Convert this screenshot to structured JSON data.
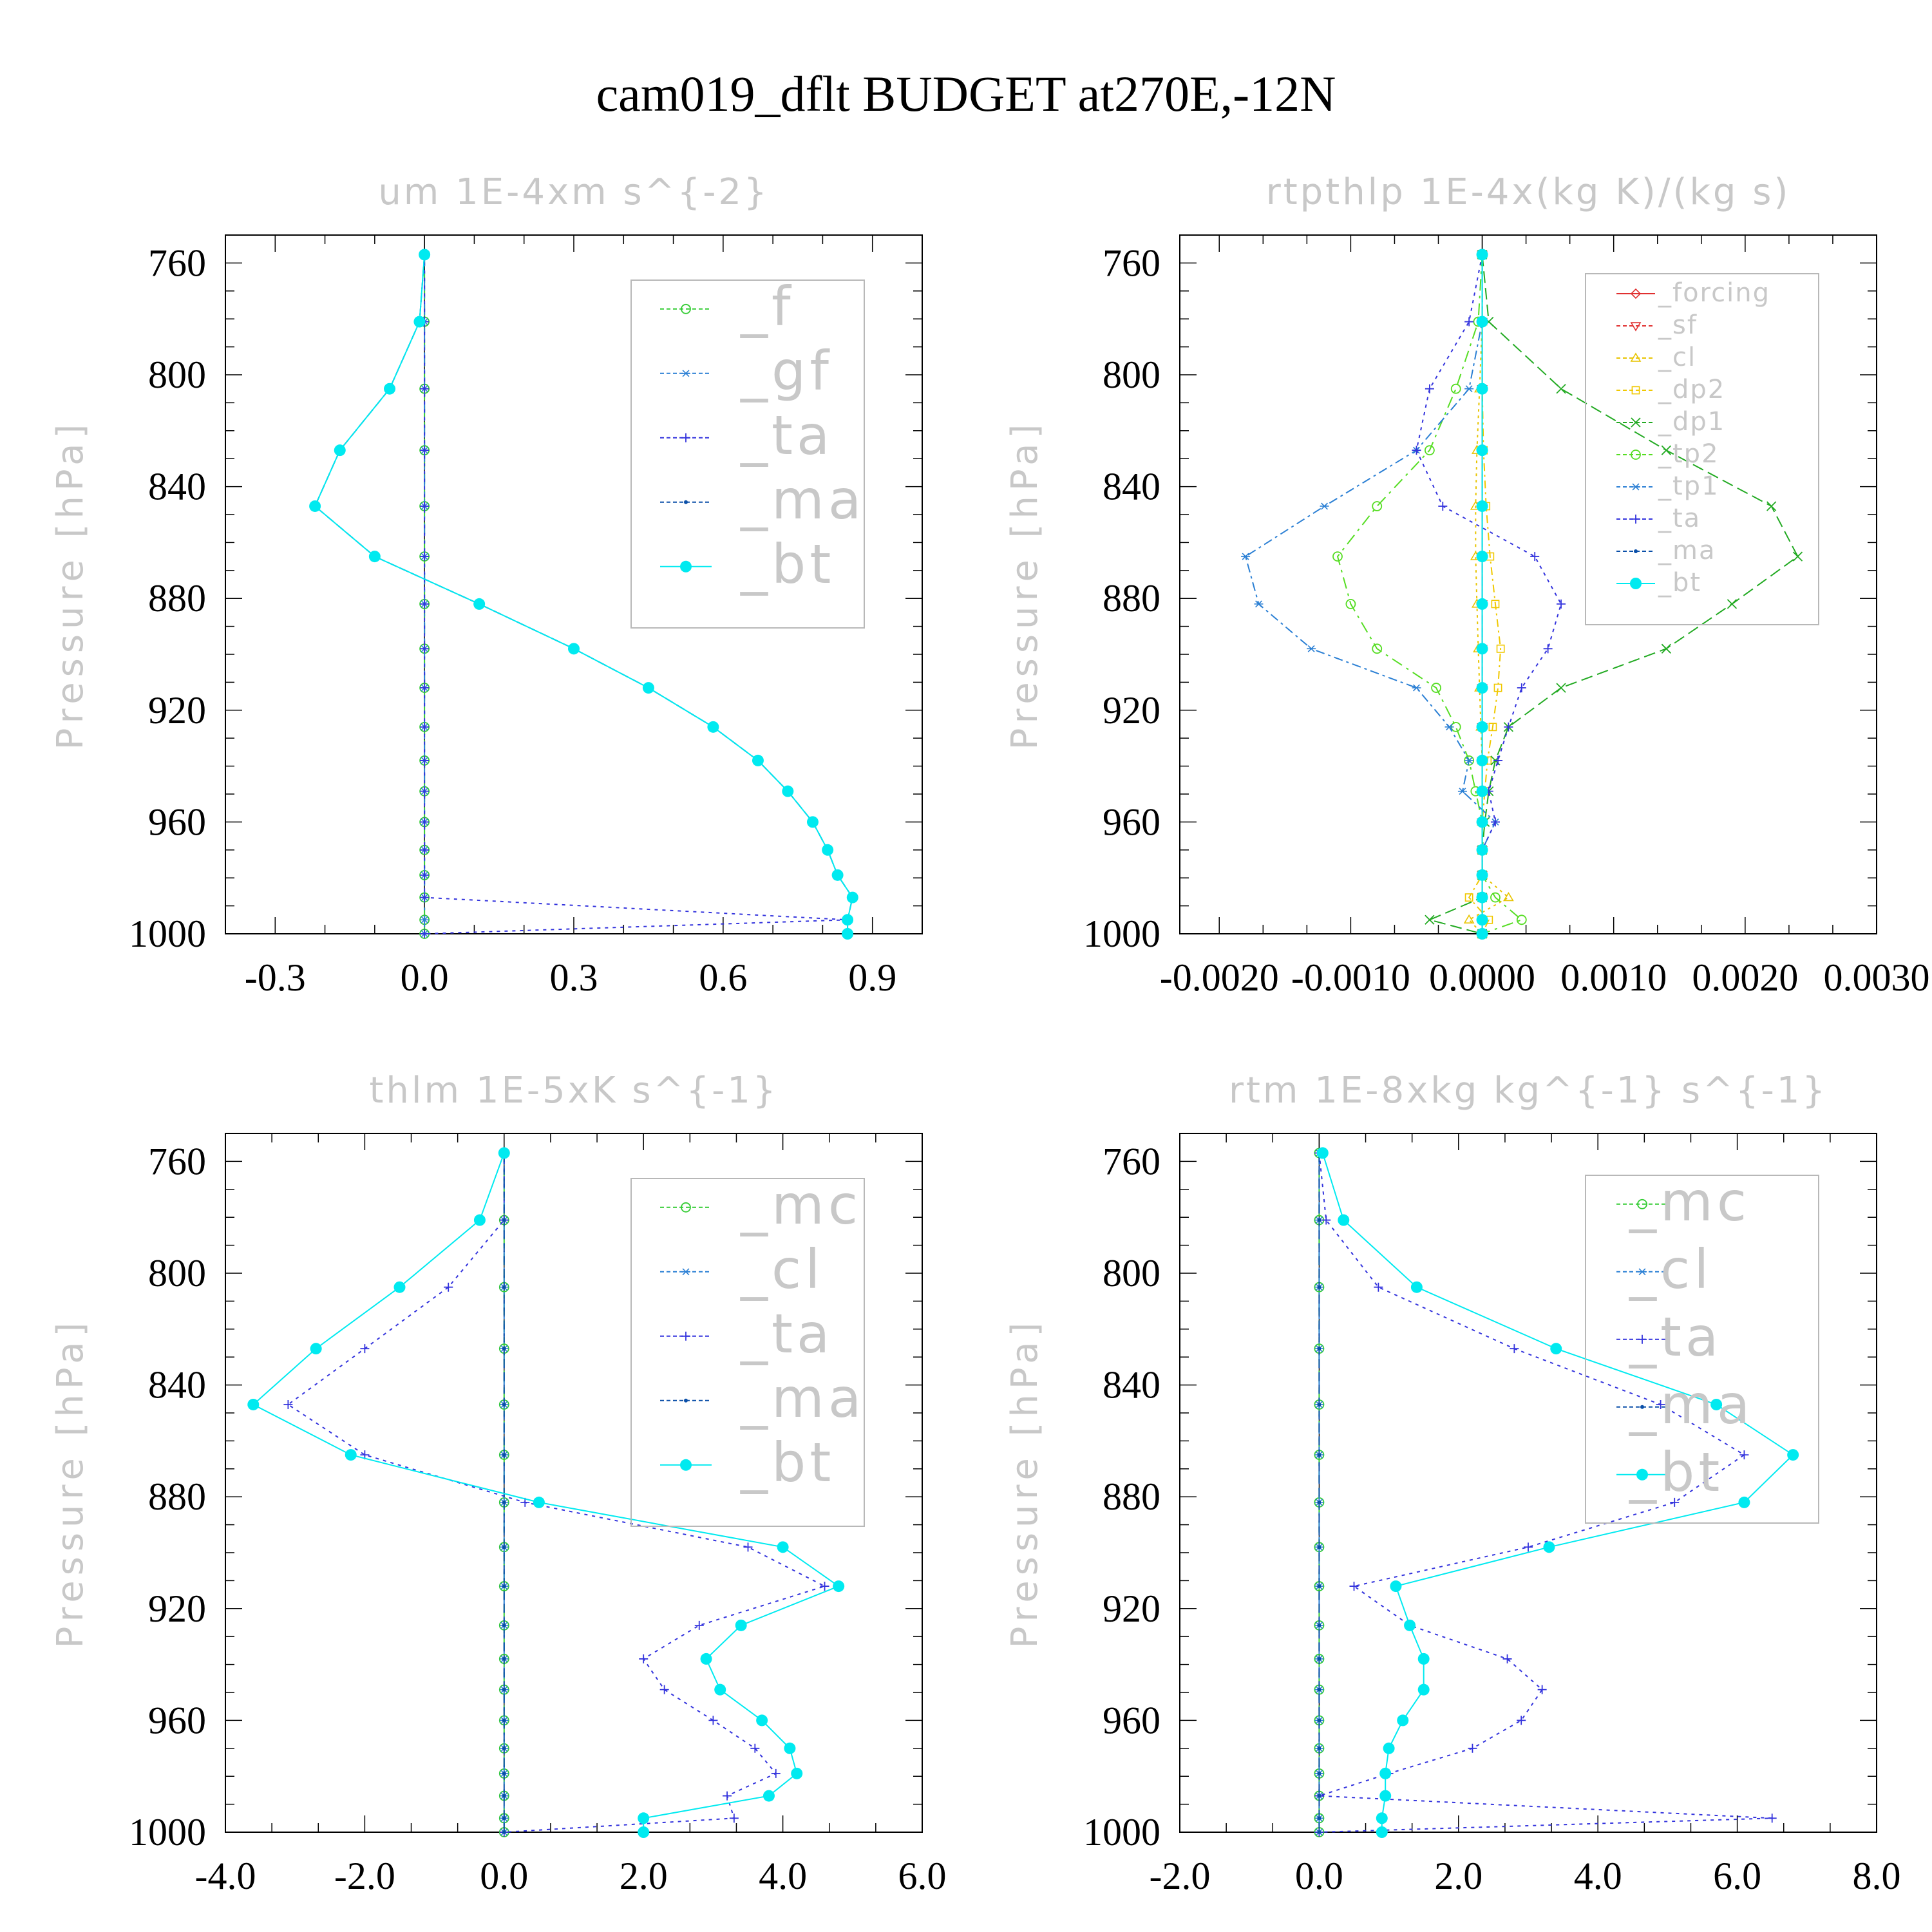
{
  "page_title": "cam019_dflt  BUDGET at270E,-12N",
  "colors": {
    "f": "#33cc33",
    "gf": "#2a7fd4",
    "ta": "#3333dd",
    "ma": "#0a4fa8",
    "bt": "#00eaf0",
    "forcing": "#e03030",
    "sf": "#e03030",
    "cl_y": "#e8c400",
    "dp2": "#f0c800",
    "dp1": "#22aa22",
    "tp2": "#55dd22",
    "tp1": "#2a7fd4",
    "mc": "#33cc33",
    "cl_b": "#2a7fd4"
  },
  "chart_data": [
    {
      "type": "line",
      "title": "um   1E-4xm s^{-2}",
      "ylabel": "Pressure [hPa]",
      "ylim": [
        1000,
        750
      ],
      "xlim": [
        -0.4,
        1.0
      ],
      "yticks": [
        "760",
        "800",
        "840",
        "880",
        "920",
        "960",
        "1000"
      ],
      "xticks": [
        "-0.3",
        "0.0",
        "0.3",
        "0.6",
        "0.9"
      ],
      "legend": [
        "_f",
        "_gf",
        "_ta",
        "_ma",
        "_bt"
      ],
      "pressure": [
        757,
        781,
        805,
        827,
        847,
        865,
        882,
        898,
        912,
        926,
        938,
        949,
        960,
        970,
        979,
        987,
        995,
        1000
      ],
      "series": [
        {
          "name": "_f",
          "x": [
            0,
            0,
            0,
            0,
            0,
            0,
            0,
            0,
            0,
            0,
            0,
            0,
            0,
            0,
            0,
            0,
            0,
            0
          ]
        },
        {
          "name": "_gf",
          "x": [
            0,
            0,
            0,
            0,
            0,
            0,
            0,
            0,
            0,
            0,
            0,
            0,
            0,
            0,
            0,
            0,
            0,
            0
          ]
        },
        {
          "name": "_ta",
          "x": [
            0,
            0,
            0,
            0,
            0,
            0,
            0,
            0,
            0,
            0,
            0,
            0,
            0,
            0,
            0,
            0,
            0.85,
            0
          ]
        },
        {
          "name": "_ma",
          "x": [
            0.0,
            -0.01,
            -0.07,
            -0.17,
            -0.22,
            -0.1,
            0.11,
            0.3,
            0.45,
            0.58,
            0.67,
            0.73,
            0.78,
            0.81,
            0.83,
            0.86,
            0.85,
            0.85
          ]
        },
        {
          "name": "_bt",
          "x": [
            0.0,
            -0.01,
            -0.07,
            -0.17,
            -0.22,
            -0.1,
            0.11,
            0.3,
            0.45,
            0.58,
            0.67,
            0.73,
            0.78,
            0.81,
            0.83,
            0.86,
            0.85,
            0.85
          ]
        }
      ]
    },
    {
      "type": "line",
      "title": "rtpthlp   1E-4x(kg K)/(kg s)",
      "ylabel": "Pressure [hPa]",
      "ylim": [
        1000,
        750
      ],
      "xlim": [
        -0.0023,
        0.003
      ],
      "yticks": [
        "760",
        "800",
        "840",
        "880",
        "920",
        "960",
        "1000"
      ],
      "xticks": [
        "-0.0020",
        "-0.0010",
        "0.0000",
        "0.0010",
        "0.0020",
        "0.0030"
      ],
      "legend": [
        "_forcing",
        "_sf",
        "_cl",
        "_dp2",
        "_dp1",
        "_tp2",
        "_tp1",
        "_ta",
        "_ma",
        "_bt"
      ],
      "pressure": [
        757,
        781,
        805,
        827,
        847,
        865,
        882,
        898,
        912,
        926,
        938,
        949,
        960,
        970,
        979,
        987,
        995,
        1000
      ],
      "series": [
        {
          "name": "_forcing",
          "x": [
            0,
            0,
            0,
            0,
            0,
            0,
            0,
            0,
            0,
            0,
            0,
            0,
            0,
            0,
            0,
            0,
            0,
            0
          ]
        },
        {
          "name": "_sf",
          "x": [
            0,
            0,
            0,
            0,
            0,
            0,
            0,
            0,
            0,
            0,
            0,
            0,
            0,
            0,
            0,
            0,
            0,
            0
          ]
        },
        {
          "name": "_cl",
          "x": [
            0,
            0,
            -2e-05,
            -4e-05,
            -5e-05,
            -5e-05,
            -4e-05,
            -3e-05,
            -2e-05,
            -1e-05,
            0,
            0,
            0,
            0,
            0,
            0.0002,
            -0.0001,
            0
          ]
        },
        {
          "name": "_dp2",
          "x": [
            0,
            0,
            0,
            1e-05,
            3e-05,
            6e-05,
            0.0001,
            0.00014,
            0.00012,
            8e-05,
            4e-05,
            2e-05,
            0,
            0,
            0,
            -0.0001,
            5e-05,
            0
          ]
        },
        {
          "name": "_dp1",
          "x": [
            0,
            5e-05,
            0.0006,
            0.0014,
            0.0022,
            0.0024,
            0.0019,
            0.0014,
            0.0006,
            0.0002,
            0.0001,
            5e-05,
            2e-05,
            0,
            0,
            0,
            -0.0004,
            0
          ]
        },
        {
          "name": "_tp2",
          "x": [
            0,
            -3e-05,
            -0.0002,
            -0.0004,
            -0.0008,
            -0.0011,
            -0.001,
            -0.0008,
            -0.00035,
            -0.0002,
            -0.0001,
            -5e-05,
            0,
            0,
            0,
            0.0001,
            0.0003,
            0
          ]
        },
        {
          "name": "_tp1",
          "x": [
            0,
            0,
            -0.0001,
            -0.0005,
            -0.0012,
            -0.0018,
            -0.0017,
            -0.0013,
            -0.0005,
            -0.00025,
            -0.0001,
            -0.00015,
            0.0001,
            0,
            0,
            0,
            0,
            0
          ]
        },
        {
          "name": "_ta",
          "x": [
            0,
            -0.0001,
            -0.0004,
            -0.0005,
            -0.0003,
            0.0004,
            0.0006,
            0.0005,
            0.0003,
            0.0002,
            0.00012,
            5e-05,
            0.0001,
            0,
            0,
            0,
            0,
            0
          ]
        },
        {
          "name": "_ma",
          "x": [
            0,
            0,
            0,
            0,
            0,
            0,
            0,
            0,
            0,
            0,
            0,
            0,
            0,
            0,
            0,
            0,
            0,
            0
          ]
        },
        {
          "name": "_bt",
          "x": [
            0,
            0,
            0,
            0,
            0,
            0,
            0,
            0,
            0,
            0,
            0,
            0,
            0,
            0,
            0,
            0,
            0,
            0
          ]
        }
      ]
    },
    {
      "type": "line",
      "title": "thlm   1E-5xK s^{-1}",
      "ylabel": "Pressure [hPa]",
      "ylim": [
        1000,
        750
      ],
      "xlim": [
        -4.0,
        6.0
      ],
      "yticks": [
        "760",
        "800",
        "840",
        "880",
        "920",
        "960",
        "1000"
      ],
      "xticks": [
        "-4.0",
        "-2.0",
        "0.0",
        "2.0",
        "4.0",
        "6.0"
      ],
      "legend": [
        "_mc",
        "_cl",
        "_ta",
        "_ma",
        "_bt"
      ],
      "pressure": [
        757,
        781,
        805,
        827,
        847,
        865,
        882,
        898,
        912,
        926,
        938,
        949,
        960,
        970,
        979,
        987,
        995,
        1000
      ],
      "series": [
        {
          "name": "_mc",
          "x": [
            0,
            0,
            0,
            0,
            0,
            0,
            0,
            0,
            0,
            0,
            0,
            0,
            0,
            0,
            0,
            0,
            0,
            0
          ]
        },
        {
          "name": "_cl",
          "x": [
            0,
            0,
            0,
            0,
            0,
            0,
            0,
            0,
            0,
            0,
            0,
            0,
            0,
            0,
            0,
            0,
            0,
            0
          ]
        },
        {
          "name": "_ta",
          "x": [
            0,
            0,
            -0.8,
            -2.0,
            -3.1,
            -2.0,
            0.3,
            3.5,
            4.6,
            2.8,
            2.0,
            2.3,
            3.0,
            3.6,
            3.9,
            3.2,
            3.3,
            0
          ]
        },
        {
          "name": "_ma",
          "x": [
            0,
            0,
            0,
            0,
            0,
            0,
            0,
            0,
            0,
            0,
            0,
            0,
            0,
            0,
            0,
            0,
            0,
            0
          ]
        },
        {
          "name": "_bt",
          "x": [
            0,
            -0.35,
            -1.5,
            -2.7,
            -3.6,
            -2.2,
            0.5,
            4.0,
            4.8,
            3.4,
            2.9,
            3.1,
            3.7,
            4.1,
            4.2,
            3.8,
            2.0,
            2.0
          ]
        }
      ]
    },
    {
      "type": "line",
      "title": "rtm   1E-8xkg kg^{-1} s^{-1}",
      "ylabel": "Pressure [hPa]",
      "ylim": [
        1000,
        750
      ],
      "xlim": [
        -2.0,
        8.0
      ],
      "yticks": [
        "760",
        "800",
        "840",
        "880",
        "920",
        "960",
        "1000"
      ],
      "xticks": [
        "-2.0",
        "0.0",
        "2.0",
        "4.0",
        "6.0",
        "8.0"
      ],
      "legend": [
        "_mc",
        "_cl",
        "_ta",
        "_ma",
        "_bt"
      ],
      "pressure": [
        757,
        781,
        805,
        827,
        847,
        865,
        882,
        898,
        912,
        926,
        938,
        949,
        960,
        970,
        979,
        987,
        995,
        1000
      ],
      "series": [
        {
          "name": "_mc",
          "x": [
            0,
            0,
            0,
            0,
            0,
            0,
            0,
            0,
            0,
            0,
            0,
            0,
            0,
            0,
            0,
            0,
            0,
            0
          ]
        },
        {
          "name": "_cl",
          "x": [
            0,
            0,
            0,
            0,
            0,
            0,
            0,
            0,
            0,
            0,
            0,
            0,
            0,
            0,
            0,
            0,
            0,
            0
          ]
        },
        {
          "name": "_ta",
          "x": [
            0,
            0.1,
            0.85,
            2.8,
            4.9,
            6.1,
            5.1,
            3.0,
            0.5,
            1.3,
            2.7,
            3.2,
            2.9,
            2.2,
            1.0,
            0,
            6.5,
            0
          ]
        },
        {
          "name": "_ma",
          "x": [
            0,
            0,
            0,
            0,
            0,
            0,
            0,
            0,
            0,
            0,
            0,
            0,
            0,
            0,
            0,
            0,
            0,
            0
          ]
        },
        {
          "name": "_bt",
          "x": [
            0.05,
            0.35,
            1.4,
            3.4,
            5.7,
            6.8,
            6.1,
            3.3,
            1.1,
            1.3,
            1.5,
            1.5,
            1.2,
            1.0,
            0.95,
            0.95,
            0.9,
            0.9
          ]
        }
      ]
    }
  ]
}
